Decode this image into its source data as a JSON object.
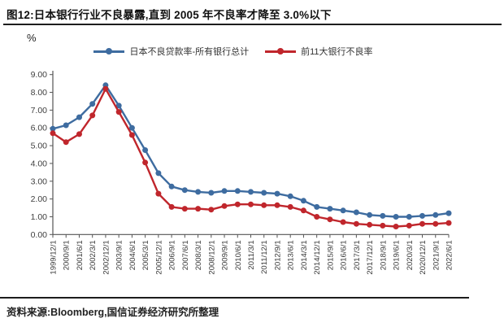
{
  "header": {
    "title": "图12:日本银行行业不良暴露,直到 2005 年不良率才降至 3.0%以下"
  },
  "footer": {
    "source": "资料来源:Bloomberg,国信证券经济研究所整理"
  },
  "chart_data": {
    "type": "line",
    "title": "日本银行行业不良暴露,直到 2005 年不良率才降至 3.0%以下",
    "unit": "%",
    "xlabel": "",
    "ylabel": "%",
    "ylim": [
      0,
      9
    ],
    "ytick_step": 1,
    "ytick_labels": [
      "0.00",
      "1.00",
      "2.00",
      "3.00",
      "4.00",
      "5.00",
      "6.00",
      "7.00",
      "8.00",
      "9.00"
    ],
    "grid": false,
    "legend_position": "top",
    "categories": [
      "1999/12/1",
      "2000/9/1",
      "2001/6/1",
      "2002/3/1",
      "2002/12/1",
      "2003/9/1",
      "2004/6/1",
      "2005/3/1",
      "2005/12/1",
      "2006/9/1",
      "2007/6/1",
      "2008/3/1",
      "2008/12/1",
      "2009/9/1",
      "2010/6/1",
      "2011/3/1",
      "2011/12/1",
      "2012/9/1",
      "2013/6/1",
      "2014/3/1",
      "2014/12/1",
      "2015/9/1",
      "2016/6/1",
      "2017/3/1",
      "2017/12/1",
      "2018/9/1",
      "2019/6/1",
      "2020/3/1",
      "2020/12/1",
      "2021/9/1",
      "2022/6/1"
    ],
    "series": [
      {
        "name": "日本不良贷款率-所有银行总计",
        "color": "#3E6CA0",
        "values": [
          5.95,
          6.15,
          6.6,
          7.35,
          8.4,
          7.25,
          6.0,
          4.75,
          3.45,
          2.7,
          2.5,
          2.4,
          2.35,
          2.45,
          2.45,
          2.4,
          2.35,
          2.3,
          2.15,
          1.9,
          1.55,
          1.45,
          1.35,
          1.25,
          1.1,
          1.05,
          1.0,
          1.0,
          1.05,
          1.1,
          1.2
        ]
      },
      {
        "name": "前11大银行不良率",
        "color": "#C0262C",
        "values": [
          5.7,
          5.2,
          5.65,
          6.7,
          8.2,
          6.9,
          5.6,
          4.05,
          2.3,
          1.55,
          1.45,
          1.45,
          1.4,
          1.6,
          1.7,
          1.7,
          1.65,
          1.65,
          1.55,
          1.35,
          1.0,
          0.85,
          0.7,
          0.6,
          0.55,
          0.5,
          0.45,
          0.5,
          0.6,
          0.6,
          0.65
        ]
      }
    ]
  }
}
